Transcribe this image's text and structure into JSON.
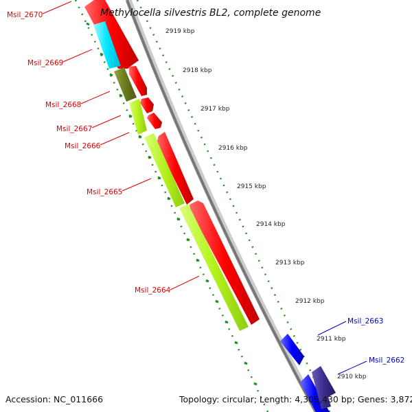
{
  "title": "Methylocella silvestris BL2, complete genome",
  "footer": {
    "accession": "Accession: NC_011666",
    "topology": "Topology: circular; Length: 4,305,430 bp; Genes: 3,872"
  },
  "kbp_ticks": [
    "2919 kbp",
    "2918 kbp",
    "2917 kbp",
    "2916 kbp",
    "2915 kbp",
    "2914 kbp",
    "2913 kbp",
    "2912 kbp",
    "2911 kbp",
    "2910 kbp"
  ],
  "genes_minus": [
    "Msil_2670",
    "Msil_2669",
    "Msil_2668",
    "Msil_2667",
    "Msil_2666",
    "Msil_2665",
    "Msil_2664"
  ],
  "genes_plus": [
    "Msil_2663",
    "Msil_2662"
  ],
  "colors": {
    "forward_cds": "#ff0000",
    "cyan_gene": "#00e5ff",
    "olive_gene": "#6b7a1e",
    "lime_gene": "#b5f21c",
    "blue_gene": "#0000ff",
    "indigo_gene": "#3b2c8c",
    "backbone": "#888888",
    "dots": "#228b22",
    "label_red": "#dd0000",
    "label_blue": "#0000cc"
  }
}
